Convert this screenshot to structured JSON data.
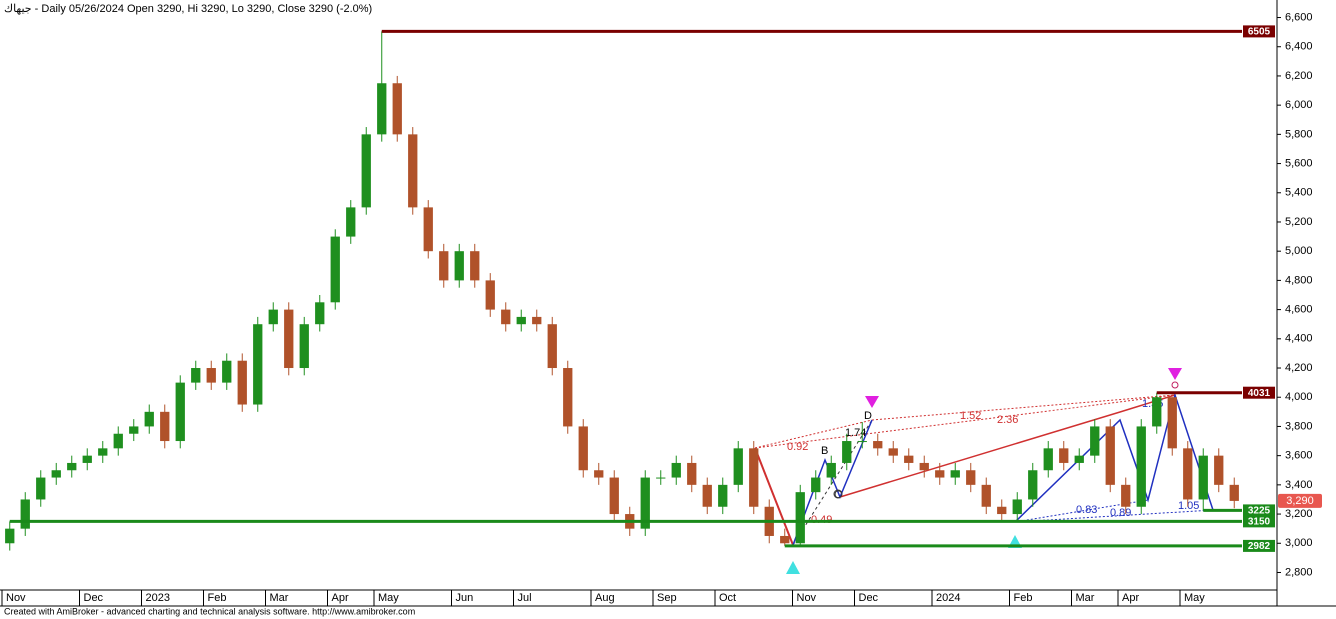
{
  "chart_data": {
    "type": "candlestick",
    "title": "جيهاك - Daily 05/26/2024 Open 3290, Hi 3290, Lo 3290, Close 3290 (-2.0%)",
    "footer": "Created with AmiBroker - advanced charting and technical analysis software. http://www.amibroker.com",
    "categories": [
      "Nov",
      null,
      null,
      null,
      null,
      "Dec",
      null,
      null,
      null,
      "2023",
      null,
      null,
      null,
      "Feb",
      null,
      null,
      null,
      "Mar",
      null,
      null,
      null,
      "Apr",
      null,
      null,
      "May",
      null,
      null,
      null,
      null,
      "Jun",
      null,
      null,
      null,
      "Jul",
      null,
      null,
      null,
      null,
      "Aug",
      null,
      null,
      null,
      "Sep",
      null,
      null,
      null,
      "Oct",
      null,
      null,
      null,
      null,
      "Nov",
      null,
      null,
      null,
      "Dec",
      null,
      null,
      null,
      null,
      "2024",
      null,
      null,
      null,
      null,
      "Feb",
      null,
      null,
      null,
      "Mar",
      null,
      null,
      "Apr",
      null,
      null,
      null,
      "May",
      null,
      null,
      null
    ],
    "open": [
      3000,
      3100,
      3300,
      3450,
      3500,
      3550,
      3600,
      3650,
      3750,
      3800,
      3900,
      3700,
      4100,
      4200,
      4100,
      4250,
      3950,
      4500,
      4600,
      4200,
      4500,
      4650,
      5100,
      5300,
      5800,
      6150,
      5800,
      5300,
      5000,
      4800,
      5000,
      4800,
      4600,
      4500,
      4550,
      4500,
      4200,
      3800,
      3500,
      3450,
      3200,
      3100,
      3450,
      3450,
      3550,
      3400,
      3250,
      3400,
      3650,
      3250,
      3050,
      3000,
      3350,
      3450,
      3550,
      3700,
      3700,
      3650,
      3600,
      3550,
      3500,
      3450,
      3500,
      3400,
      3250,
      3200,
      3300,
      3500,
      3650,
      3550,
      3600,
      3800,
      3400,
      3250,
      3800,
      4000,
      3650,
      3300,
      3600,
      3400
    ],
    "high": [
      3150,
      3350,
      3500,
      3550,
      3600,
      3650,
      3700,
      3800,
      3850,
      3950,
      3950,
      4150,
      4250,
      4250,
      4300,
      4300,
      4550,
      4650,
      4650,
      4550,
      4700,
      5150,
      5350,
      5850,
      6505,
      6200,
      5850,
      5350,
      5050,
      5050,
      5050,
      4850,
      4650,
      4600,
      4600,
      4550,
      4250,
      3850,
      3550,
      3500,
      3250,
      3500,
      3500,
      3600,
      3600,
      3450,
      3450,
      3700,
      3700,
      3300,
      3100,
      3400,
      3500,
      3600,
      3750,
      3830,
      3750,
      3700,
      3650,
      3600,
      3550,
      3550,
      3550,
      3450,
      3300,
      3350,
      3550,
      3700,
      3700,
      3650,
      3850,
      3850,
      3450,
      3850,
      4031,
      4000,
      3700,
      3650,
      3650,
      3450
    ],
    "low": [
      2950,
      3050,
      3250,
      3400,
      3450,
      3500,
      3550,
      3600,
      3700,
      3750,
      3650,
      3650,
      4050,
      4050,
      4050,
      3900,
      3900,
      4450,
      4150,
      4150,
      4450,
      4600,
      5050,
      5250,
      5750,
      5750,
      5250,
      4950,
      4750,
      4750,
      4750,
      4550,
      4450,
      4450,
      4450,
      4150,
      3750,
      3450,
      3400,
      3150,
      3050,
      3050,
      3400,
      3400,
      3350,
      3200,
      3200,
      3350,
      3200,
      3000,
      2982,
      2990,
      3300,
      3400,
      3500,
      3650,
      3600,
      3550,
      3500,
      3450,
      3400,
      3400,
      3350,
      3200,
      3150,
      3150,
      3250,
      3450,
      3500,
      3500,
      3550,
      3350,
      3200,
      3200,
      3750,
      3600,
      3250,
      3225,
      3350,
      3240
    ],
    "close": [
      3100,
      3300,
      3450,
      3500,
      3550,
      3600,
      3650,
      3750,
      3800,
      3900,
      3700,
      4100,
      4200,
      4100,
      4250,
      3950,
      4500,
      4600,
      4200,
      4500,
      4650,
      5100,
      5300,
      5800,
      6150,
      5800,
      5300,
      5000,
      4800,
      5000,
      4800,
      4600,
      4500,
      4550,
      4500,
      4200,
      3800,
      3500,
      3450,
      3200,
      3100,
      3450,
      3450,
      3550,
      3400,
      3250,
      3400,
      3650,
      3250,
      3050,
      3000,
      3350,
      3450,
      3550,
      3700,
      3700,
      3650,
      3600,
      3550,
      3500,
      3450,
      3500,
      3400,
      3250,
      3200,
      3300,
      3500,
      3650,
      3550,
      3600,
      3800,
      3400,
      3250,
      3800,
      4000,
      3650,
      3300,
      3600,
      3400,
      3290
    ],
    "up_color": "#1f8f1f",
    "down_color": "#b0522a",
    "ylim": [
      2680,
      6720
    ],
    "yticks": [
      {
        "value": 2800,
        "label": "2,800"
      },
      {
        "value": 3000,
        "label": "3,000"
      },
      {
        "value": 3200,
        "label": "3,200"
      },
      {
        "value": 3400,
        "label": "3,400"
      },
      {
        "value": 3600,
        "label": "3,600"
      },
      {
        "value": 3800,
        "label": "3,800"
      },
      {
        "value": 4000,
        "label": "4,000"
      },
      {
        "value": 4200,
        "label": "4,200"
      },
      {
        "value": 4400,
        "label": "4,400"
      },
      {
        "value": 4600,
        "label": "4,600"
      },
      {
        "value": 4800,
        "label": "4,800"
      },
      {
        "value": 5000,
        "label": "5,000"
      },
      {
        "value": 5200,
        "label": "5,200"
      },
      {
        "value": 5400,
        "label": "5,400"
      },
      {
        "value": 5600,
        "label": "5,600"
      },
      {
        "value": 5800,
        "label": "5,800"
      },
      {
        "value": 6000,
        "label": "6,000"
      },
      {
        "value": 6200,
        "label": "6,200"
      },
      {
        "value": 6400,
        "label": "6,400"
      },
      {
        "value": 6600,
        "label": "6,600"
      }
    ],
    "levels": [
      {
        "value": 6505,
        "color": "#7a0000"
      },
      {
        "value": 4031,
        "color": "#7a0000"
      },
      {
        "value": 3225,
        "color": "#1a8a1a"
      },
      {
        "value": 3150,
        "color": "#1a8a1a"
      },
      {
        "value": 2982,
        "color": "#1a8a1a"
      }
    ],
    "last_price": {
      "value": 3290,
      "value_label": "3,290",
      "color": "#e8574f"
    },
    "pattern_ratios": [
      "0.92",
      "1.74",
      "0.49",
      "1.52",
      "2.36",
      "1.35",
      "0.83",
      "0.89",
      "1.05"
    ],
    "pattern_points": [
      "B",
      "C",
      "D"
    ]
  }
}
